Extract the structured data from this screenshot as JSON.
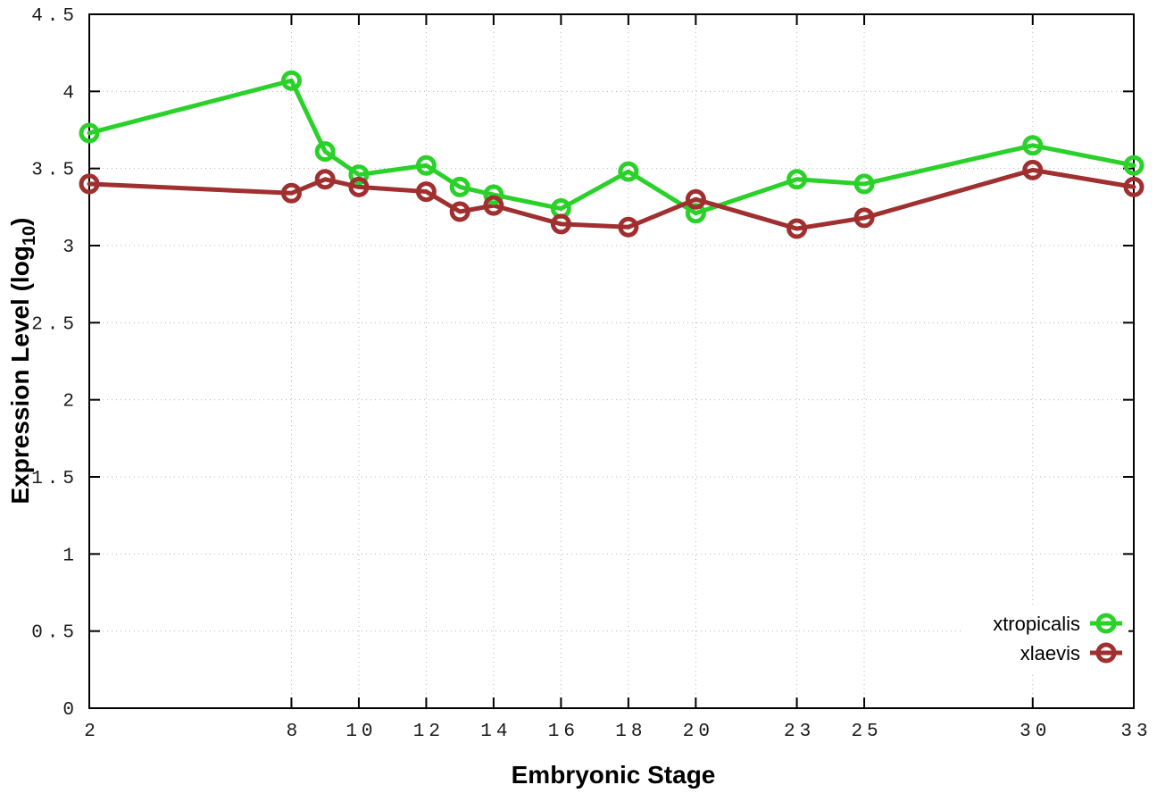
{
  "chart_data": {
    "type": "line",
    "title": "",
    "xlabel": "Embryonic Stage",
    "ylabel": "Expression Level (log10)",
    "ylabel_parts": {
      "prefix": "Expression Level (log",
      "sub": "10",
      "suffix": ")"
    },
    "xlim": [
      2,
      33
    ],
    "ylim": [
      0,
      4.5
    ],
    "grid": true,
    "legend_position": "bottom-right",
    "x": [
      2,
      8,
      9,
      10,
      12,
      13,
      14,
      16,
      18,
      20,
      23,
      25,
      30,
      33
    ],
    "xticks": [
      2,
      8,
      10,
      12,
      14,
      16,
      18,
      20,
      23,
      25,
      30,
      33
    ],
    "xtick_labels": [
      "2",
      "8",
      "10",
      "12",
      "14",
      "16",
      "18",
      "20",
      "23",
      "25",
      "30",
      "33"
    ],
    "yticks": [
      0,
      0.5,
      1,
      1.5,
      2,
      2.5,
      3,
      3.5,
      4,
      4.5
    ],
    "ytick_labels": [
      "0",
      "0.5",
      "1",
      "1.5",
      "2",
      "2.5",
      "3",
      "3.5",
      "4",
      "4.5"
    ],
    "series": [
      {
        "name": "xtropicalis",
        "color": "#29d129",
        "marker": "open-circle",
        "values": [
          3.73,
          4.07,
          3.61,
          3.46,
          3.52,
          3.38,
          3.33,
          3.24,
          3.48,
          3.21,
          3.43,
          3.4,
          3.65,
          3.52
        ]
      },
      {
        "name": "xlaevis",
        "color": "#a03030",
        "marker": "open-circle",
        "values": [
          3.4,
          3.34,
          3.43,
          3.38,
          3.35,
          3.22,
          3.26,
          3.14,
          3.12,
          3.3,
          3.11,
          3.18,
          3.49,
          3.38
        ]
      }
    ],
    "colors": {
      "grid": "#b5b5b5",
      "axis": "#000000",
      "tick_text": "#1a1a1a"
    }
  }
}
